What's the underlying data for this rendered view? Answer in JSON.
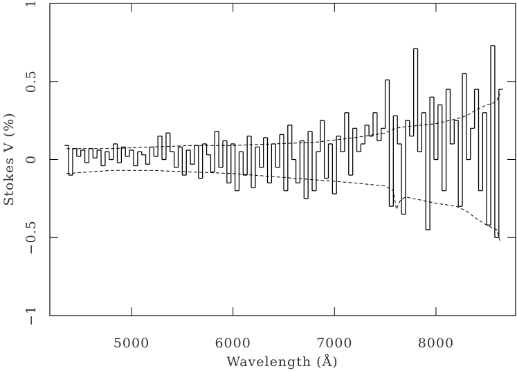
{
  "chart_data": {
    "type": "line",
    "xlabel": "Wavelength (Å)",
    "ylabel": "Stokes V (%)",
    "xlim": [
      4195,
      8785
    ],
    "ylim": [
      -1,
      1
    ],
    "xticks": [
      5000,
      6000,
      7000,
      8000
    ],
    "yticks": [
      {
        "value": -1,
        "label": "−1"
      },
      {
        "value": -0.5,
        "label": "−0.5"
      },
      0,
      0.5,
      1
    ],
    "series": [
      {
        "color": "#000000",
        "style": "step",
        "step_width": 40,
        "x": [
          4360,
          4400,
          4440,
          4480,
          4520,
          4560,
          4600,
          4640,
          4680,
          4720,
          4760,
          4800,
          4840,
          4880,
          4920,
          4960,
          5000,
          5040,
          5080,
          5120,
          5160,
          5200,
          5240,
          5280,
          5320,
          5360,
          5400,
          5440,
          5480,
          5520,
          5560,
          5600,
          5640,
          5680,
          5720,
          5760,
          5800,
          5840,
          5880,
          5920,
          5960,
          6000,
          6040,
          6080,
          6120,
          6160,
          6200,
          6240,
          6280,
          6320,
          6360,
          6400,
          6440,
          6480,
          6520,
          6560,
          6600,
          6640,
          6680,
          6720,
          6760,
          6800,
          6840,
          6880,
          6920,
          6960,
          7000,
          7040,
          7080,
          7120,
          7160,
          7200,
          7240,
          7280,
          7320,
          7360,
          7400,
          7440,
          7480,
          7520,
          7560,
          7600,
          7640,
          7680,
          7720,
          7760,
          7800,
          7840,
          7880,
          7920,
          7960,
          8000,
          8040,
          8080,
          8120,
          8160,
          8200,
          8240,
          8280,
          8320,
          8360,
          8400,
          8440,
          8480,
          8520,
          8560,
          8600,
          8640
        ],
        "values": [
          0.09,
          -0.1,
          0.07,
          0.02,
          0.06,
          -0.02,
          0.07,
          0.01,
          0.06,
          -0.04,
          0.05,
          0.0,
          0.1,
          -0.02,
          0.08,
          0.02,
          0.06,
          -0.04,
          0.05,
          0.03,
          -0.03,
          0.08,
          0.02,
          0.15,
          0.0,
          0.17,
          0.05,
          -0.05,
          0.08,
          -0.1,
          0.06,
          -0.03,
          0.09,
          -0.12,
          0.1,
          0.03,
          -0.08,
          0.18,
          -0.05,
          0.12,
          -0.15,
          0.1,
          -0.2,
          0.05,
          -0.1,
          0.15,
          -0.18,
          0.08,
          -0.05,
          0.14,
          -0.15,
          0.1,
          -0.05,
          0.16,
          -0.2,
          0.22,
          0.0,
          -0.15,
          0.12,
          -0.25,
          0.18,
          -0.2,
          0.05,
          0.25,
          -0.12,
          0.1,
          -0.22,
          0.15,
          0.05,
          0.3,
          -0.1,
          0.2,
          0.05,
          0.1,
          0.22,
          0.15,
          0.3,
          0.12,
          0.2,
          0.51,
          -0.3,
          0.28,
          0.1,
          -0.35,
          0.25,
          0.15,
          0.71,
          0.05,
          0.3,
          -0.45,
          0.4,
          0.0,
          0.35,
          -0.2,
          0.45,
          0.1,
          0.25,
          -0.3,
          0.55,
          0.0,
          0.2,
          0.45,
          -0.2,
          0.3,
          -0.42,
          0.73,
          -0.5,
          0.45
        ]
      },
      {
        "color": "#000000",
        "style": "dashed",
        "x": [
          4360,
          4800,
          5200,
          5600,
          6000,
          6400,
          6800,
          7200,
          7500,
          7600,
          7700,
          8000,
          8200,
          8300,
          8400,
          8500,
          8560,
          8600,
          8630
        ],
        "values": [
          0.07,
          0.07,
          0.08,
          0.09,
          0.09,
          0.1,
          0.11,
          0.14,
          0.17,
          0.2,
          0.21,
          0.23,
          0.26,
          0.28,
          0.32,
          0.35,
          0.36,
          0.38,
          0.42
        ]
      },
      {
        "color": "#000000",
        "style": "dashed",
        "x": [
          4360,
          4800,
          5200,
          5600,
          6000,
          6400,
          6800,
          7200,
          7500,
          7580,
          7610,
          7650,
          7700,
          8000,
          8200,
          8300,
          8400,
          8500,
          8560,
          8600,
          8630
        ],
        "values": [
          -0.09,
          -0.07,
          -0.07,
          -0.08,
          -0.09,
          -0.11,
          -0.13,
          -0.15,
          -0.17,
          -0.2,
          -0.32,
          -0.26,
          -0.24,
          -0.28,
          -0.3,
          -0.33,
          -0.38,
          -0.42,
          -0.44,
          -0.45,
          -0.52
        ]
      }
    ]
  }
}
